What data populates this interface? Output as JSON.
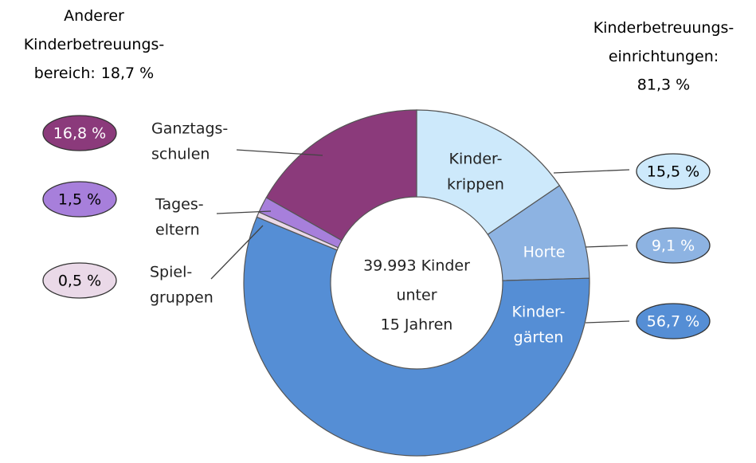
{
  "chart_data": {
    "type": "donut",
    "categories": [
      [
        "Kinder-",
        "krippen"
      ],
      [
        "Horte"
      ],
      [
        "Kinder-",
        "gärten"
      ],
      [
        "Spiel-",
        "gruppen"
      ],
      [
        "Tages-",
        "eltern"
      ],
      [
        "Ganztags-",
        "schulen"
      ]
    ],
    "values": [
      15.5,
      9.1,
      56.7,
      0.5,
      1.5,
      16.8
    ],
    "value_labels": [
      "15,5 %",
      "9,1 %",
      "56,7 %",
      "0,5 %",
      "1,5 %",
      "16,8 %"
    ],
    "colors": [
      "#cde9fb",
      "#8db3e2",
      "#558ed5",
      "#ead9e8",
      "#a77fdb",
      "#8b3a7b"
    ],
    "center_text": [
      "39.993 Kinder",
      "unter",
      "15 Jahren"
    ],
    "groups": [
      {
        "lines": [
          "Anderer",
          "Kinderbetreuungs-",
          "bereich:"
        ],
        "value_label": "18,7 %"
      },
      {
        "lines": [
          "Kinderbetreuungs-",
          "einrichtungen:"
        ],
        "value_label": "81,3 %"
      }
    ]
  }
}
